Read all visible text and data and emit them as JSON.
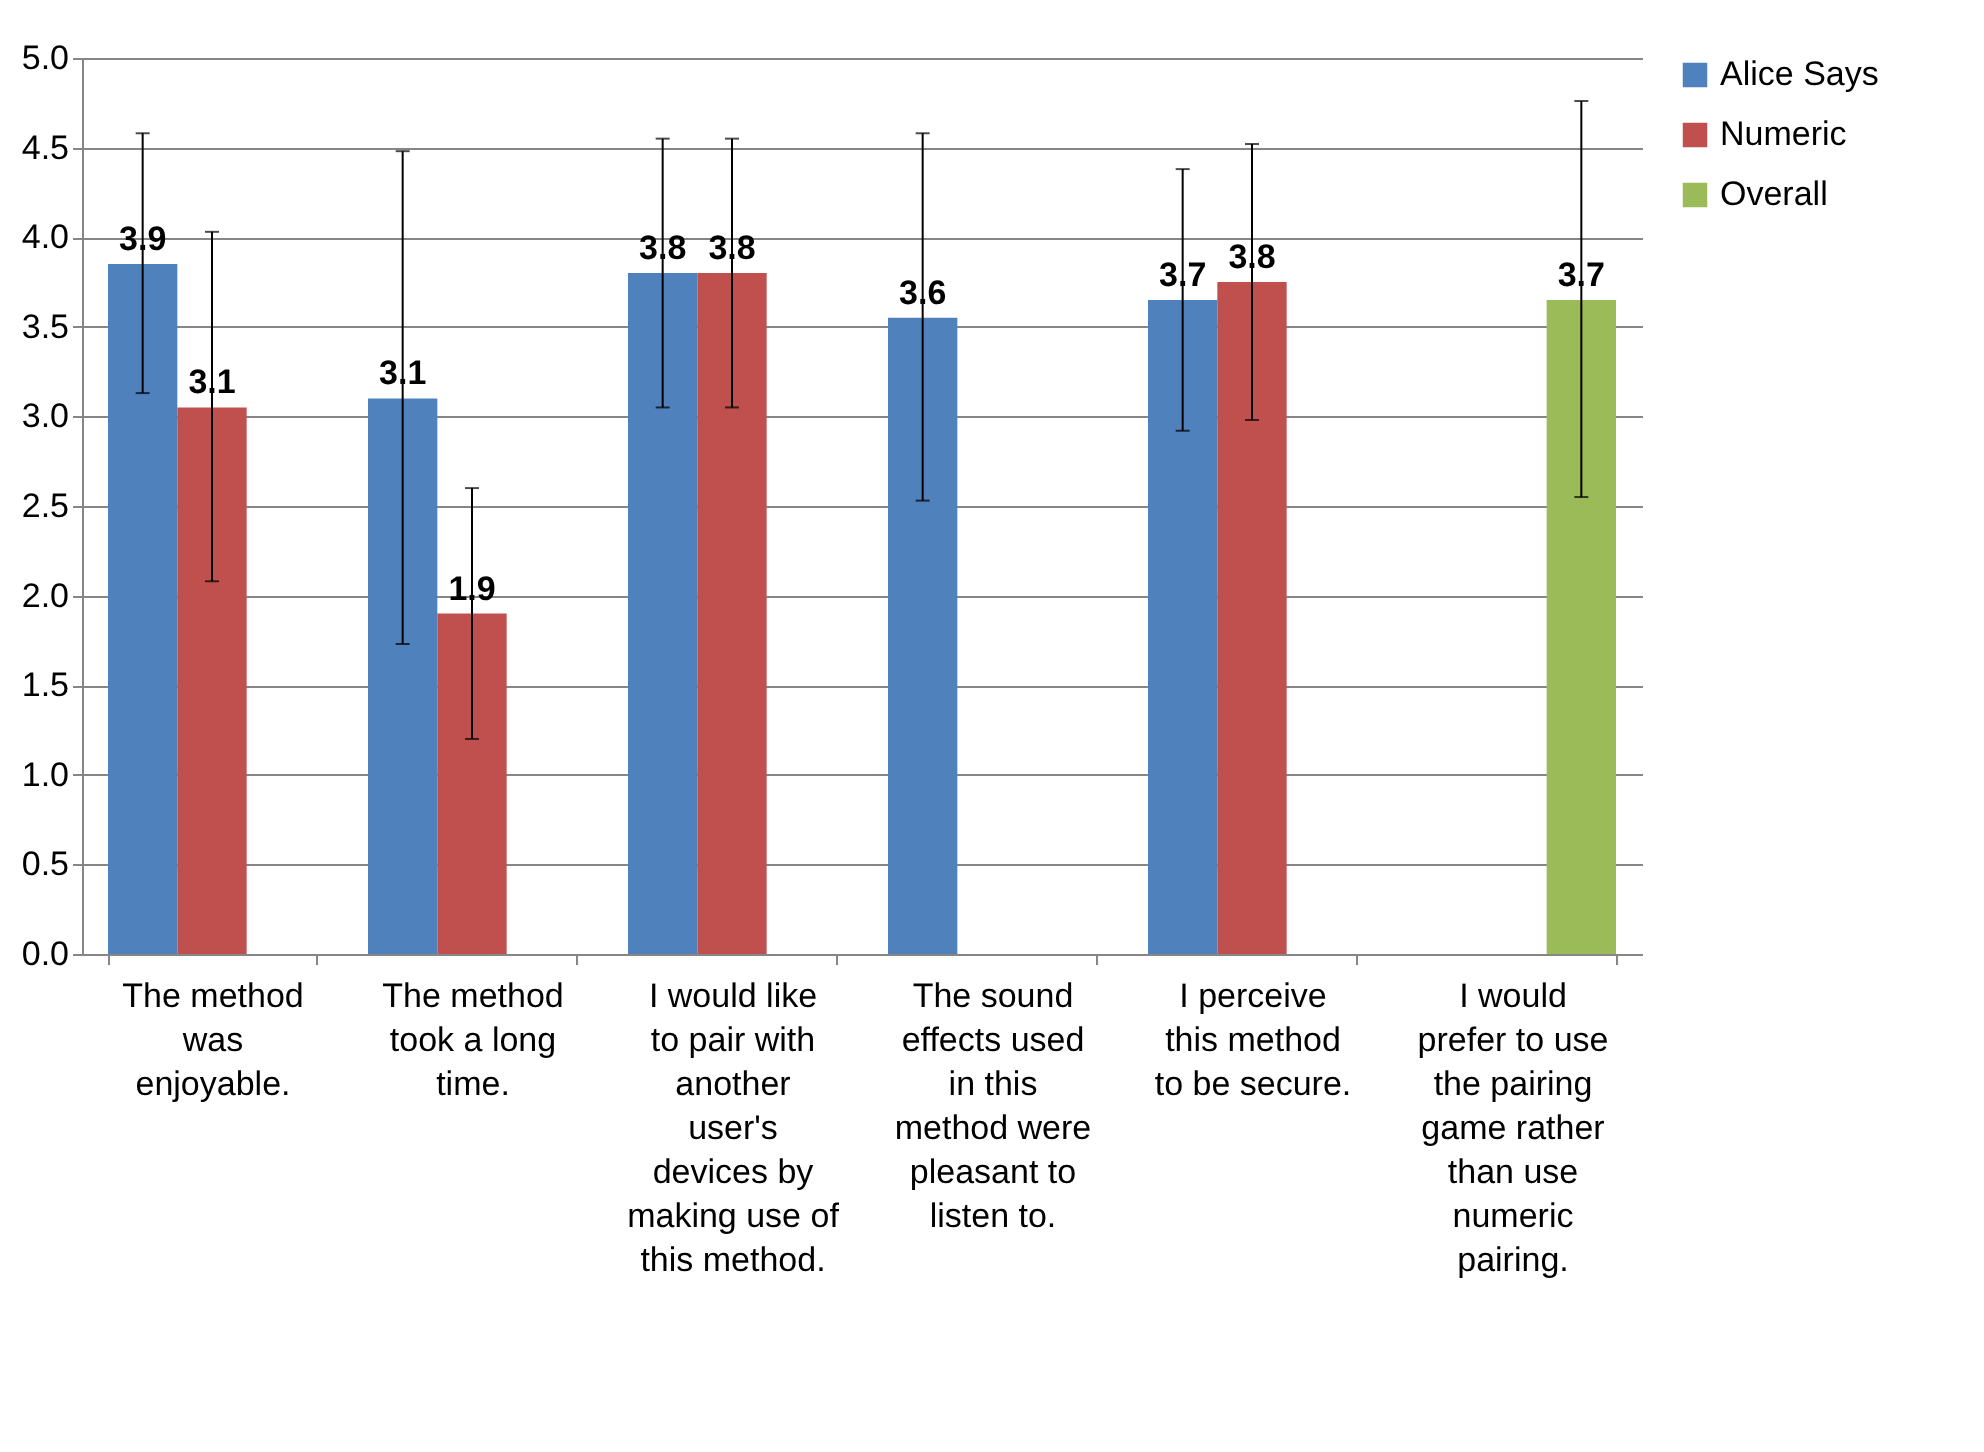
{
  "chart_data": {
    "type": "bar",
    "categories": [
      "The method was enjoyable.",
      "The method took a long time.",
      "I would like to pair with another user's devices by making use of this method.",
      "The sound effects used in this method were pleasant to listen to.",
      "I perceive this method to be secure.",
      "I would prefer to use the pairing game rather than use numeric pairing."
    ],
    "series": [
      {
        "name": "Alice Says",
        "color": "#4f81bd",
        "values": [
          3.85,
          3.1,
          3.8,
          3.55,
          3.65,
          null
        ],
        "errors": [
          [
            3.13,
            4.58
          ],
          [
            1.73,
            4.48
          ],
          [
            3.05,
            4.55
          ],
          [
            2.53,
            4.58
          ],
          [
            2.92,
            4.38
          ],
          null
        ],
        "value_labels": [
          "3.9",
          "3.1",
          "3.8",
          "3.6",
          "3.7",
          null
        ]
      },
      {
        "name": "Numeric",
        "color": "#c0504d",
        "values": [
          3.05,
          1.9,
          3.8,
          null,
          3.75,
          null
        ],
        "errors": [
          [
            2.08,
            4.03
          ],
          [
            1.2,
            2.6
          ],
          [
            3.05,
            4.55
          ],
          null,
          [
            2.98,
            4.52
          ],
          null
        ],
        "value_labels": [
          "3.1",
          "1.9",
          "3.8",
          null,
          "3.8",
          null
        ]
      },
      {
        "name": "Overall",
        "color": "#9bbb59",
        "values": [
          null,
          null,
          null,
          null,
          null,
          3.65
        ],
        "errors": [
          null,
          null,
          null,
          null,
          null,
          [
            2.55,
            4.76
          ]
        ],
        "value_labels": [
          null,
          null,
          null,
          null,
          null,
          "3.7"
        ]
      }
    ],
    "ylim": [
      0,
      5
    ],
    "yticks": [
      {
        "value": 0,
        "label": "0.0"
      },
      {
        "value": 0.5,
        "label": "0.5"
      },
      {
        "value": 1,
        "label": "1.0"
      },
      {
        "value": 1.5,
        "label": "1.5"
      },
      {
        "value": 2,
        "label": "2.0"
      },
      {
        "value": 2.5,
        "label": "2.5"
      },
      {
        "value": 3,
        "label": "3.0"
      },
      {
        "value": 3.5,
        "label": "3.5"
      },
      {
        "value": 4,
        "label": "4.0"
      },
      {
        "value": 4.5,
        "label": "4.5"
      },
      {
        "value": 5,
        "label": "5.0"
      }
    ],
    "grid": "y",
    "legend": "right"
  }
}
